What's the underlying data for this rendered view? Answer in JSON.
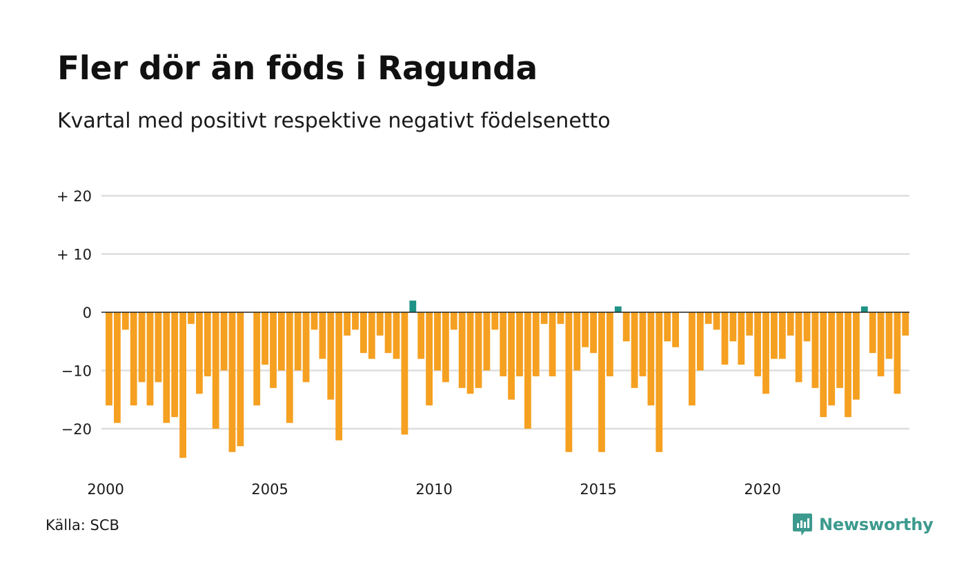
{
  "title": "Fler dör än föds i Ragunda",
  "subtitle": "Kvartal med positivt respektive negativt födelsenetto",
  "source": "Källa: SCB",
  "brand": "Newsworthy",
  "colors": {
    "negative": "#f5a020",
    "positive": "#1e9284",
    "grid": "#dddddd",
    "zero_line": "#222222",
    "brand": "#3c9a8e"
  },
  "chart_data": {
    "type": "bar",
    "start_year": 2000,
    "periods_per_year": 4,
    "values": [
      -16,
      -19,
      -3,
      -16,
      -12,
      -16,
      -12,
      -19,
      -18,
      -25,
      -2,
      -14,
      -11,
      -20,
      -10,
      -24,
      -23,
      0,
      -16,
      -9,
      -13,
      -10,
      -19,
      -10,
      -12,
      -3,
      -8,
      -15,
      -22,
      -4,
      -3,
      -7,
      -8,
      -4,
      -7,
      -8,
      -21,
      2,
      -8,
      -16,
      -10,
      -12,
      -3,
      -13,
      -14,
      -13,
      -10,
      -3,
      -11,
      -15,
      -11,
      -20,
      -11,
      -2,
      -11,
      -2,
      -24,
      -10,
      -6,
      -7,
      -24,
      -11,
      1,
      -5,
      -13,
      -11,
      -16,
      -24,
      -5,
      -6,
      0,
      -16,
      -10,
      -2,
      -3,
      -9,
      -5,
      -9,
      -4,
      -11,
      -14,
      -8,
      -8,
      -4,
      -12,
      -5,
      -13,
      -18,
      -16,
      -13,
      -18,
      -15,
      1,
      -7,
      -11,
      -8,
      -14,
      -4
    ],
    "y_ticks": [
      {
        "value": 20,
        "label": "+ 20"
      },
      {
        "value": 10,
        "label": "+ 10"
      },
      {
        "value": 0,
        "label": "0"
      },
      {
        "value": -10,
        "label": "−10"
      },
      {
        "value": -20,
        "label": "−20"
      }
    ],
    "x_ticks": [
      {
        "year": 2000,
        "label": "2000"
      },
      {
        "year": 2005,
        "label": "2005"
      },
      {
        "year": 2010,
        "label": "2010"
      },
      {
        "year": 2015,
        "label": "2015"
      },
      {
        "year": 2020,
        "label": "2020"
      }
    ],
    "ylim": [
      -26,
      20
    ],
    "grid": true,
    "legend": "none"
  }
}
